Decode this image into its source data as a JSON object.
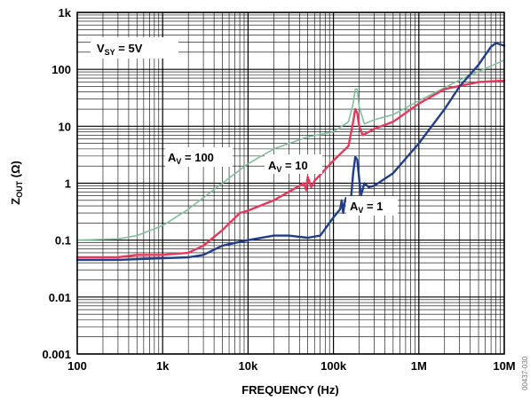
{
  "chart_data": {
    "type": "line",
    "xlabel": "FREQUENCY (Hz)",
    "ylabel": {
      "main": "Z",
      "sub": "OUT",
      "unit": " (Ω)"
    },
    "xscale": "log",
    "yscale": "log",
    "xlim": [
      100,
      10000000
    ],
    "ylim": [
      0.001,
      1000
    ],
    "grid": true,
    "x_ticks": [
      {
        "value": 100,
        "label": "100"
      },
      {
        "value": 1000,
        "label": "1k"
      },
      {
        "value": 10000,
        "label": "10k"
      },
      {
        "value": 100000,
        "label": "100k"
      },
      {
        "value": 1000000,
        "label": "1M"
      },
      {
        "value": 10000000,
        "label": "10M"
      }
    ],
    "y_ticks": [
      {
        "value": 0.001,
        "label": "0.001"
      },
      {
        "value": 0.01,
        "label": "0.01"
      },
      {
        "value": 0.1,
        "label": "0.1"
      },
      {
        "value": 1,
        "label": "1"
      },
      {
        "value": 10,
        "label": "10"
      },
      {
        "value": 100,
        "label": "100"
      },
      {
        "value": 1000,
        "label": "1k"
      }
    ],
    "annotations": [
      {
        "id": "vsy",
        "main": "V",
        "sub": "SY",
        "rest": " = 5V",
        "boxed": true
      },
      {
        "id": "av100",
        "main": "A",
        "sub": "V",
        "rest": " = 100",
        "series": "av100"
      },
      {
        "id": "av10",
        "main": "A",
        "sub": "V",
        "rest": " = 10",
        "series": "av10"
      },
      {
        "id": "av1",
        "main": "A",
        "sub": "V",
        "rest": " = 1",
        "series": "av1"
      }
    ],
    "series": [
      {
        "key": "av100",
        "color": "#7fbf9a",
        "points": [
          [
            100,
            0.1
          ],
          [
            300,
            0.105
          ],
          [
            500,
            0.12
          ],
          [
            1000,
            0.18
          ],
          [
            2000,
            0.35
          ],
          [
            5000,
            1.0
          ],
          [
            10000,
            2.2
          ],
          [
            20000,
            4.0
          ],
          [
            50000,
            6.5
          ],
          [
            100000,
            8.0
          ],
          [
            150000,
            12
          ],
          [
            170000,
            25
          ],
          [
            180000,
            45
          ],
          [
            190000,
            45
          ],
          [
            200000,
            22
          ],
          [
            230000,
            11
          ],
          [
            300000,
            13
          ],
          [
            500000,
            16
          ],
          [
            1000000,
            28
          ],
          [
            3000000,
            65
          ],
          [
            10000000,
            145
          ]
        ]
      },
      {
        "key": "av10",
        "color": "#e8385a",
        "points": [
          [
            100,
            0.05
          ],
          [
            300,
            0.05
          ],
          [
            500,
            0.055
          ],
          [
            1000,
            0.055
          ],
          [
            2000,
            0.06
          ],
          [
            3000,
            0.08
          ],
          [
            5000,
            0.15
          ],
          [
            8000,
            0.3
          ],
          [
            10000,
            0.33
          ],
          [
            20000,
            0.5
          ],
          [
            40000,
            0.9
          ],
          [
            45000,
            1.0
          ],
          [
            48000,
            0.75
          ],
          [
            50000,
            1.3
          ],
          [
            55000,
            0.85
          ],
          [
            60000,
            1.1
          ],
          [
            100000,
            2.5
          ],
          [
            150000,
            4.5
          ],
          [
            170000,
            12
          ],
          [
            180000,
            20
          ],
          [
            190000,
            17
          ],
          [
            200000,
            10
          ],
          [
            220000,
            7
          ],
          [
            300000,
            9
          ],
          [
            500000,
            12
          ],
          [
            1000000,
            25
          ],
          [
            2000000,
            45
          ],
          [
            5000000,
            60
          ],
          [
            10000000,
            63
          ]
        ]
      },
      {
        "key": "av1",
        "color": "#1f3d8a",
        "points": [
          [
            100,
            0.045
          ],
          [
            300,
            0.045
          ],
          [
            1000,
            0.048
          ],
          [
            2000,
            0.05
          ],
          [
            3000,
            0.055
          ],
          [
            5000,
            0.08
          ],
          [
            10000,
            0.1
          ],
          [
            20000,
            0.12
          ],
          [
            30000,
            0.12
          ],
          [
            50000,
            0.11
          ],
          [
            70000,
            0.12
          ],
          [
            100000,
            0.25
          ],
          [
            120000,
            0.35
          ],
          [
            125000,
            0.5
          ],
          [
            130000,
            0.3
          ],
          [
            135000,
            0.45
          ],
          [
            140000,
            0.55
          ],
          [
            150000,
            0.4
          ],
          [
            160000,
            0.5
          ],
          [
            170000,
            1.5
          ],
          [
            180000,
            2.9
          ],
          [
            190000,
            2.6
          ],
          [
            200000,
            1.2
          ],
          [
            210000,
            0.6
          ],
          [
            230000,
            1.0
          ],
          [
            260000,
            0.85
          ],
          [
            300000,
            0.9
          ],
          [
            500000,
            1.5
          ],
          [
            1000000,
            5
          ],
          [
            2000000,
            20
          ],
          [
            3000000,
            50
          ],
          [
            5000000,
            120
          ],
          [
            7000000,
            250
          ],
          [
            8000000,
            290
          ],
          [
            10000000,
            260
          ]
        ]
      }
    ]
  },
  "figure_id": "00437-030"
}
